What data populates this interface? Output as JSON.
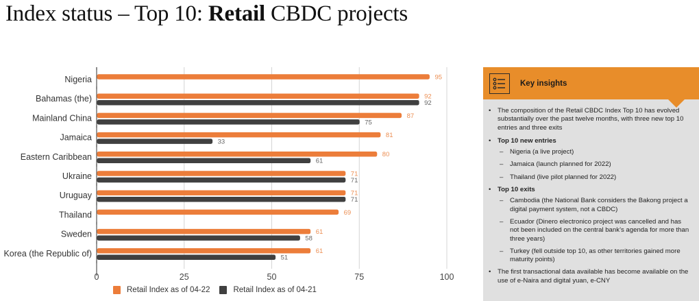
{
  "title": {
    "prefix": "Index status – Top 10: ",
    "bold": "Retail",
    "suffix": " CBDC projects"
  },
  "colors": {
    "series_2022": "#ec7d3a",
    "series_2021": "#404040",
    "label_2022": "#ec8e52",
    "label_2021": "#666666",
    "grid": "#d4d4d4",
    "panel_header": "#e88d2a",
    "panel_body": "#e0e0e0"
  },
  "chart_data": {
    "type": "bar",
    "orientation": "horizontal",
    "title": "",
    "xlabel": "",
    "ylabel": "",
    "categories": [
      "Nigeria",
      "Bahamas (the)",
      "Mainland China",
      "Jamaica",
      "Eastern Caribbean",
      "Ukraine",
      "Uruguay",
      "Thailand",
      "Sweden",
      "Korea (the Republic of)"
    ],
    "series": [
      {
        "name": "Retail Index as of 04-22",
        "values": [
          95,
          92,
          87,
          81,
          80,
          71,
          71,
          69,
          61,
          61
        ]
      },
      {
        "name": "Retail Index as of 04-21",
        "values": [
          null,
          92,
          75,
          33,
          61,
          71,
          71,
          null,
          58,
          51
        ]
      }
    ],
    "xlim": [
      0,
      100
    ],
    "xticks": [
      0,
      25,
      50,
      75,
      100
    ],
    "grid": true,
    "legend_position": "bottom"
  },
  "legend": {
    "items": [
      "Retail Index as of 04-22",
      "Retail Index as of 04-21"
    ]
  },
  "insights": {
    "title": "Key insights",
    "icon": "list-icon",
    "intro": "The composition of the Retail CBDC Index Top 10 has evolved substantially over the past twelve months, with three new top 10 entries and three exits",
    "new_entries_heading": "Top 10 new entries",
    "new_entries": [
      "Nigeria (a live project)",
      "Jamaica (launch planned for 2022)",
      "Thailand (live pilot planned for 2022)"
    ],
    "exits_heading": "Top 10 exits",
    "exits": [
      "Cambodia (the National Bank considers the Bakong project a digital payment system, not a CBDC)",
      "Ecuador (Dinero electronico project was cancelled and has not been included on the central bank’s agenda for more than three years)",
      "Turkey (fell outside top 10, as other territories gained more maturity points)"
    ],
    "closing": "The first transactional data available has become available on the use of e-Naira and digital yuan, e-CNY",
    "bullet": "•",
    "dash": "–"
  }
}
